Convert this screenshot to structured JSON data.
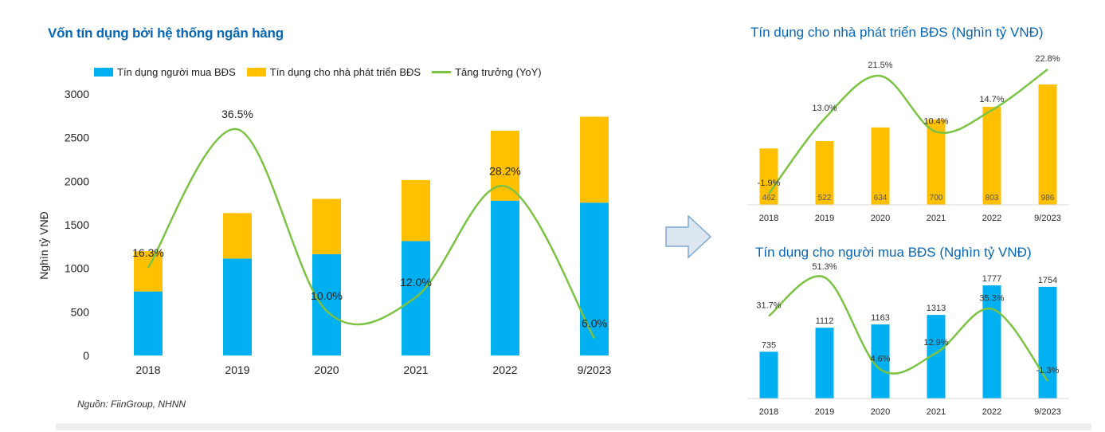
{
  "colors": {
    "buyers": "#00b0f0",
    "developers": "#ffc000",
    "growth": "#7cc243",
    "title": "#0a66b3",
    "arrow_fill": "#dbe6f1",
    "arrow_stroke": "#7fa7cf"
  },
  "source": "Nguồn: FiinGroup, NHNN",
  "chart_data": [
    {
      "type": "bar",
      "stacked": true,
      "title": "Vốn tín dụng bởi hệ thống ngân hàng",
      "ylabel": "Nghìn tỷ VNĐ",
      "ylim": [
        0,
        3000
      ],
      "yticks": [
        "0",
        "500",
        "1000",
        "1500",
        "2000",
        "2500",
        "3000"
      ],
      "ytick_values": [
        0,
        500,
        1000,
        1500,
        2000,
        2500,
        3000
      ],
      "categories": [
        "2018",
        "2019",
        "2020",
        "2021",
        "2022",
        "9/2023"
      ],
      "series": [
        {
          "name": "Tín dụng người mua BĐS",
          "values": [
            735,
            1112,
            1163,
            1313,
            1777,
            1754
          ]
        },
        {
          "name": "Tín dụng cho nhà phát triển BĐS",
          "values": [
            462,
            522,
            634,
            700,
            803,
            986
          ]
        }
      ],
      "line": {
        "name": "Tăng trưởng (YoY)",
        "values": [
          16.3,
          36.5,
          10.0,
          12.0,
          28.2,
          6.0
        ]
      },
      "line_labels": [
        "16.3%",
        "36.5%",
        "10.0%",
        "12.0%",
        "28.2%",
        "6.0%"
      ],
      "legend": [
        "Tín dụng người mua BĐS",
        "Tín dụng cho nhà phát triển BĐS",
        "Tăng trưởng (YoY)"
      ]
    },
    {
      "type": "bar",
      "title": "Tín dụng cho nhà phát triển BĐS (Nghìn tỷ VNĐ)",
      "categories": [
        "2018",
        "2019",
        "2020",
        "2021",
        "2022",
        "9/2023"
      ],
      "values": [
        462,
        522,
        634,
        700,
        803,
        986
      ],
      "value_labels": [
        "462",
        "522",
        "634",
        "700",
        "803",
        "986"
      ],
      "line_values": [
        -1.9,
        13.0,
        21.5,
        10.4,
        14.7,
        22.8
      ],
      "line_labels": [
        "-1.9%",
        "13.0%",
        "21.5%",
        "10.4%",
        "14.7%",
        "22.8%"
      ]
    },
    {
      "type": "bar",
      "title": "Tín dụng cho người mua BĐS (Nghìn tỷ VNĐ)",
      "categories": [
        "2018",
        "2019",
        "2020",
        "2021",
        "2022",
        "9/2023"
      ],
      "values": [
        735,
        1112,
        1163,
        1313,
        1777,
        1754
      ],
      "value_labels": [
        "735",
        "1112",
        "1163",
        "1313",
        "1777",
        "1754"
      ],
      "line_values": [
        31.7,
        51.3,
        4.6,
        12.9,
        35.3,
        -1.3
      ],
      "line_labels": [
        "31.7%",
        "51.3%",
        "4.6%",
        "12.9%",
        "35.3%",
        "-1.3%"
      ]
    }
  ]
}
